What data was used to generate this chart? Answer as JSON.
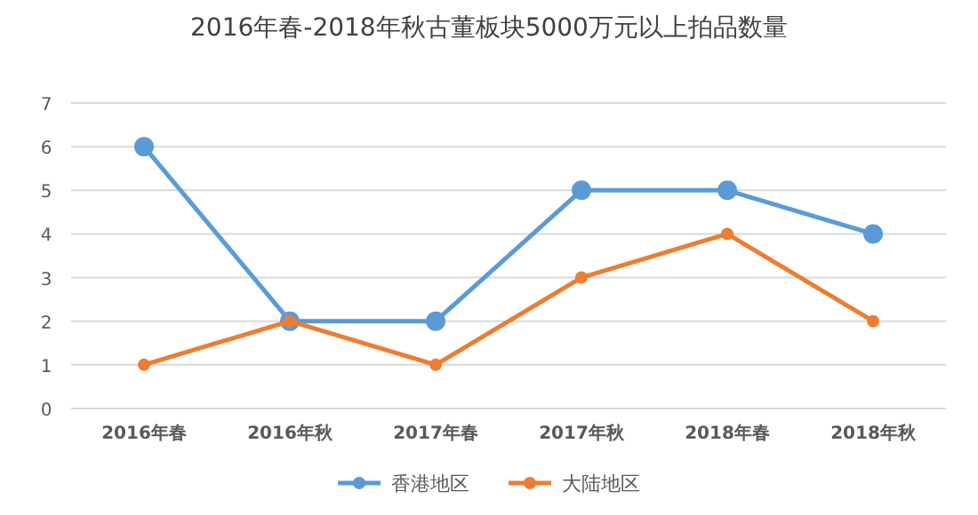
{
  "chart_data": {
    "type": "line",
    "title": "2016年春-2018年秋古董板块5000万元以上拍品数量",
    "categories": [
      "2016年春",
      "2016年秋",
      "2017年春",
      "2017年秋",
      "2018年春",
      "2018年秋"
    ],
    "series": [
      {
        "name": "香港地区",
        "color": "#5b9bd5",
        "values": [
          6,
          2,
          2,
          5,
          5,
          4
        ]
      },
      {
        "name": "大陆地区",
        "color": "#ed7d31",
        "values": [
          1,
          2,
          1,
          3,
          4,
          2
        ]
      }
    ],
    "ylim": [
      0,
      7
    ],
    "yticks": [
      0,
      1,
      2,
      3,
      4,
      5,
      6,
      7
    ],
    "grid": "y",
    "legend": "bottom",
    "marker": "circle"
  }
}
